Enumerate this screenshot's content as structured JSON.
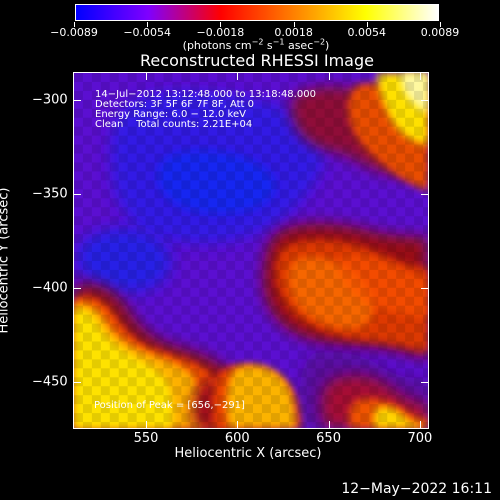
{
  "colorbar": {
    "ticks": [
      "−0.0089",
      "−0.0054",
      "−0.0018",
      "0.0018",
      "0.0054",
      "0.0089"
    ],
    "units_prefix": "(photons cm",
    "units_exp1": "−2",
    "units_mid1": " s",
    "units_exp2": "−1",
    "units_mid2": " asec",
    "units_exp3": "−2",
    "units_suffix": ")",
    "colors": [
      "#0000ff",
      "#7f00ff",
      "#ff0000",
      "#ff7f00",
      "#ffff00",
      "#ffffff"
    ]
  },
  "title": "Reconstructed RHESSI Image",
  "annotations": {
    "time_range": "14−Jul−2012 13:12:48.000 to 13:18:48.000",
    "detectors": "Detectors: 3F 5F 6F 7F 8F, Att 0",
    "energy_range": "Energy Range: 6.0 − 12.0 keV",
    "clean_counts": "Clean    Total counts: 2.21E+04",
    "peak_position": "Position of Peak = [656,−291]"
  },
  "axes": {
    "x_title": "Heliocentric X (arcsec)",
    "y_title": "Heliocentric Y (arcsec)",
    "x_ticks": [
      "550",
      "600",
      "650",
      "700"
    ],
    "y_ticks": [
      "−300",
      "−350",
      "−400",
      "−450"
    ]
  },
  "timestamp": "12−May−2022 16:11"
}
